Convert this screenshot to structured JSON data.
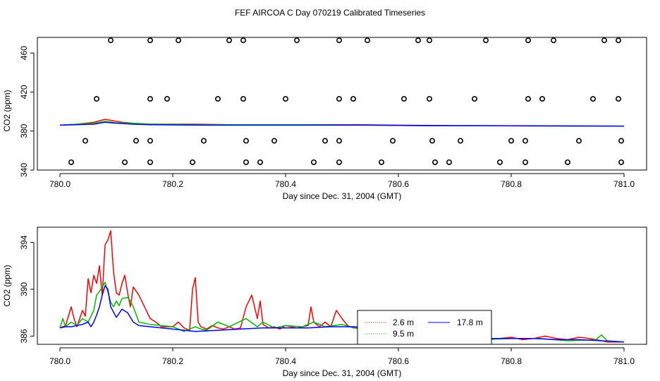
{
  "figure": {
    "title": "FEF AIRCOA C  Day 070219  Calibrated Timeseries"
  },
  "chart_data": [
    {
      "type": "scatter",
      "xlabel": "Day since Dec. 31, 2004 (GMT)",
      "ylabel": "CO2 (ppm)",
      "xlim": [
        780.0,
        781.0
      ],
      "ylim": [
        340,
        476
      ],
      "xticks": [
        "780.0",
        "780.2",
        "780.4",
        "780.6",
        "780.8",
        "781.0"
      ],
      "yticks": [
        "340",
        "380",
        "420",
        "460"
      ],
      "grid": false,
      "circle_points": [
        {
          "x": 780.09,
          "y": 473
        },
        {
          "x": 780.16,
          "y": 473
        },
        {
          "x": 780.21,
          "y": 473
        },
        {
          "x": 780.3,
          "y": 473
        },
        {
          "x": 780.325,
          "y": 473
        },
        {
          "x": 780.42,
          "y": 473
        },
        {
          "x": 780.495,
          "y": 473
        },
        {
          "x": 780.545,
          "y": 473
        },
        {
          "x": 780.635,
          "y": 473
        },
        {
          "x": 780.655,
          "y": 473
        },
        {
          "x": 780.755,
          "y": 473
        },
        {
          "x": 780.83,
          "y": 473
        },
        {
          "x": 780.875,
          "y": 473
        },
        {
          "x": 780.965,
          "y": 473
        },
        {
          "x": 780.99,
          "y": 473
        },
        {
          "x": 780.065,
          "y": 413
        },
        {
          "x": 780.16,
          "y": 413
        },
        {
          "x": 780.19,
          "y": 413
        },
        {
          "x": 780.28,
          "y": 413
        },
        {
          "x": 780.325,
          "y": 413
        },
        {
          "x": 780.4,
          "y": 413
        },
        {
          "x": 780.495,
          "y": 413
        },
        {
          "x": 780.52,
          "y": 413
        },
        {
          "x": 780.61,
          "y": 413
        },
        {
          "x": 780.655,
          "y": 413
        },
        {
          "x": 780.735,
          "y": 413
        },
        {
          "x": 780.83,
          "y": 413
        },
        {
          "x": 780.855,
          "y": 413
        },
        {
          "x": 780.945,
          "y": 413
        },
        {
          "x": 780.99,
          "y": 413
        },
        {
          "x": 780.045,
          "y": 370
        },
        {
          "x": 780.135,
          "y": 370
        },
        {
          "x": 780.16,
          "y": 370
        },
        {
          "x": 780.255,
          "y": 370
        },
        {
          "x": 780.33,
          "y": 370
        },
        {
          "x": 780.38,
          "y": 370
        },
        {
          "x": 780.47,
          "y": 370
        },
        {
          "x": 780.495,
          "y": 370
        },
        {
          "x": 780.59,
          "y": 370
        },
        {
          "x": 780.66,
          "y": 370
        },
        {
          "x": 780.71,
          "y": 370
        },
        {
          "x": 780.8,
          "y": 370
        },
        {
          "x": 780.825,
          "y": 370
        },
        {
          "x": 780.92,
          "y": 370
        },
        {
          "x": 780.995,
          "y": 370
        },
        {
          "x": 780.02,
          "y": 348
        },
        {
          "x": 780.115,
          "y": 348
        },
        {
          "x": 780.16,
          "y": 348
        },
        {
          "x": 780.235,
          "y": 348
        },
        {
          "x": 780.33,
          "y": 348
        },
        {
          "x": 780.355,
          "y": 348
        },
        {
          "x": 780.45,
          "y": 348
        },
        {
          "x": 780.495,
          "y": 348
        },
        {
          "x": 780.57,
          "y": 348
        },
        {
          "x": 780.665,
          "y": 348
        },
        {
          "x": 780.69,
          "y": 348
        },
        {
          "x": 780.78,
          "y": 348
        },
        {
          "x": 780.825,
          "y": 348
        },
        {
          "x": 780.9,
          "y": 348
        },
        {
          "x": 780.995,
          "y": 348
        }
      ],
      "series": [
        {
          "color": "#ff0000",
          "x": [
            780.0,
            780.03,
            780.06,
            780.08,
            780.09,
            780.11,
            780.13,
            780.16,
            780.24,
            780.3,
            780.35,
            780.45,
            780.52,
            780.6,
            780.7,
            781.0
          ],
          "y": [
            386,
            387,
            389,
            392,
            391,
            389,
            388,
            387,
            387,
            386.5,
            386.5,
            386.5,
            386.5,
            386,
            385.5,
            385
          ]
        },
        {
          "color": "#00cc00",
          "x": [
            780.0,
            780.03,
            780.06,
            780.08,
            780.1,
            780.13,
            780.16,
            780.25,
            780.35,
            780.45,
            780.55,
            780.65,
            780.75,
            781.0
          ],
          "y": [
            386,
            387,
            388,
            390,
            388.5,
            388,
            387,
            386.5,
            386.5,
            386.5,
            386,
            385.5,
            385.5,
            385
          ]
        },
        {
          "color": "#0000ff",
          "x": [
            780.0,
            780.03,
            780.06,
            780.08,
            780.1,
            780.13,
            780.16,
            780.25,
            780.35,
            780.45,
            780.55,
            780.65,
            780.75,
            781.0
          ],
          "y": [
            386,
            386.5,
            387,
            389,
            388,
            387,
            386.5,
            386,
            386,
            386,
            386,
            385.5,
            385.5,
            385
          ]
        }
      ]
    },
    {
      "type": "line",
      "xlabel": "Day since Dec. 31, 2004 (GMT)",
      "ylabel": "CO2 (ppm)",
      "xlim": [
        780.0,
        781.0
      ],
      "ylim": [
        385.3,
        395.3
      ],
      "xticks": [
        "780.0",
        "780.2",
        "780.4",
        "780.6",
        "780.8",
        "781.0"
      ],
      "yticks": [
        "386",
        "390",
        "394"
      ],
      "grid": false,
      "legend_placement": "bottom-center",
      "legend": [
        "2.6 m",
        "9.5 m",
        "17.8 m"
      ],
      "series": [
        {
          "name": "2.6 m",
          "color": "#ff0000",
          "x": [
            780.0,
            780.01,
            780.02,
            780.025,
            780.03,
            780.04,
            780.045,
            780.05,
            780.055,
            780.06,
            780.065,
            780.07,
            780.075,
            780.08,
            780.085,
            780.09,
            780.095,
            780.1,
            780.105,
            780.11,
            780.115,
            780.12,
            780.125,
            780.13,
            780.14,
            780.15,
            780.16,
            780.17,
            780.18,
            780.2,
            780.21,
            780.22,
            780.23,
            780.235,
            780.24,
            780.245,
            780.25,
            780.26,
            780.27,
            780.28,
            780.29,
            780.3,
            780.31,
            780.32,
            780.33,
            780.34,
            780.35,
            780.355,
            780.36,
            780.37,
            780.38,
            780.39,
            780.4,
            780.42,
            780.44,
            780.445,
            780.45,
            780.46,
            780.47,
            780.48,
            780.49,
            780.5,
            780.51,
            780.52,
            780.53,
            780.54,
            780.55,
            780.56,
            780.57,
            780.58,
            780.59,
            780.6,
            780.61,
            780.62,
            780.63,
            780.64,
            780.65,
            780.66,
            780.67,
            780.68,
            780.7,
            780.72,
            780.74,
            780.75,
            780.755,
            780.76,
            780.78,
            780.8,
            780.82,
            780.84,
            780.86,
            780.88,
            780.9,
            780.92,
            780.94,
            780.96,
            780.97,
            780.98,
            781.0
          ],
          "y": [
            386.7,
            386.9,
            388.5,
            387.5,
            386.8,
            388.2,
            387.7,
            390.9,
            389.7,
            391.2,
            390.5,
            392.0,
            389.5,
            393.8,
            394.2,
            395.0,
            391.5,
            389.7,
            389.5,
            390.5,
            391.2,
            389.7,
            388.5,
            390.2,
            389.5,
            388.5,
            387.5,
            387.2,
            386.8,
            386.8,
            387.2,
            386.7,
            386.5,
            390.0,
            391.0,
            387.2,
            386.8,
            386.6,
            386.9,
            386.7,
            386.6,
            386.8,
            386.6,
            386.7,
            388.5,
            389.5,
            387.5,
            389.0,
            387.0,
            386.7,
            386.8,
            386.6,
            386.9,
            386.7,
            386.9,
            388.5,
            387.2,
            386.8,
            387.2,
            386.8,
            388.2,
            387.5,
            386.9,
            386.7,
            386.8,
            386.6,
            386.5,
            386.4,
            386.8,
            386.5,
            386.6,
            386.9,
            386.5,
            386.7,
            386.3,
            386.3,
            386.1,
            385.9,
            385.8,
            385.7,
            385.8,
            385.7,
            386.0,
            386.5,
            385.9,
            385.8,
            385.8,
            385.9,
            385.7,
            385.8,
            386.0,
            385.8,
            385.7,
            385.9,
            385.8,
            385.6,
            385.5,
            385.5,
            385.5
          ]
        },
        {
          "name": "9.5 m",
          "color": "#00bb00",
          "x": [
            780.0,
            780.005,
            780.01,
            780.02,
            780.03,
            780.04,
            780.05,
            780.06,
            780.065,
            780.07,
            780.075,
            780.08,
            780.09,
            780.095,
            780.1,
            780.105,
            780.11,
            780.12,
            780.125,
            780.13,
            780.14,
            780.16,
            780.2,
            780.22,
            780.24,
            780.25,
            780.26,
            780.28,
            780.3,
            780.33,
            780.35,
            780.36,
            780.38,
            780.4,
            780.43,
            780.45,
            780.47,
            780.5,
            780.53,
            780.56,
            780.58,
            780.6,
            780.62,
            780.65,
            780.68,
            780.7,
            780.75,
            780.8,
            780.85,
            780.9,
            780.95,
            780.96,
            780.97,
            781.0
          ],
          "y": [
            386.7,
            387.5,
            386.8,
            387.2,
            386.9,
            387.5,
            387.2,
            388.2,
            389.5,
            389.8,
            390.2,
            390.6,
            388.9,
            388.5,
            389.0,
            388.6,
            389.2,
            389.3,
            389.0,
            388.5,
            387.2,
            387.0,
            386.8,
            386.4,
            386.8,
            386.6,
            386.5,
            387.2,
            386.8,
            387.5,
            386.8,
            387.2,
            386.7,
            386.9,
            386.8,
            387.2,
            386.8,
            387.0,
            386.6,
            386.8,
            386.3,
            387.0,
            386.5,
            386.4,
            385.9,
            386.0,
            385.7,
            385.8,
            385.8,
            385.6,
            385.7,
            386.1,
            385.6,
            385.5
          ]
        },
        {
          "name": "17.8 m",
          "color": "#0000ff",
          "x": [
            780.0,
            780.01,
            780.02,
            780.03,
            780.04,
            780.05,
            780.055,
            780.06,
            780.065,
            780.07,
            780.075,
            780.08,
            780.085,
            780.09,
            780.1,
            780.11,
            780.12,
            780.13,
            780.14,
            780.16,
            780.2,
            780.24,
            780.28,
            780.32,
            780.36,
            780.4,
            780.44,
            780.48,
            780.52,
            780.56,
            780.6,
            780.64,
            780.68,
            780.72,
            780.76,
            780.8,
            780.84,
            780.88,
            780.92,
            780.96,
            781.0
          ],
          "y": [
            386.7,
            386.8,
            386.8,
            386.9,
            387.0,
            387.2,
            386.8,
            387.2,
            387.8,
            388.5,
            389.5,
            390.3,
            390.0,
            388.5,
            387.6,
            388.3,
            388.0,
            387.2,
            386.9,
            386.8,
            386.6,
            386.4,
            386.5,
            386.6,
            386.7,
            386.7,
            386.7,
            386.8,
            386.8,
            386.7,
            386.5,
            386.2,
            385.9,
            385.8,
            385.8,
            385.8,
            385.8,
            385.7,
            385.7,
            385.6,
            385.5
          ]
        }
      ]
    }
  ]
}
